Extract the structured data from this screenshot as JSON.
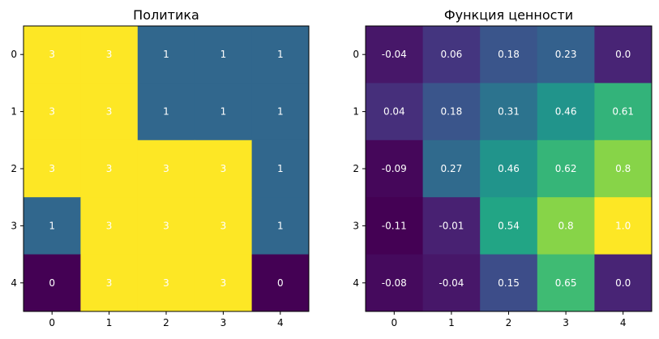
{
  "chart_data": [
    {
      "type": "heatmap",
      "title": "Политика",
      "colormap": "viridis",
      "vmin": 0,
      "vmax": 3,
      "x_ticks": [
        "0",
        "1",
        "2",
        "3",
        "4"
      ],
      "y_ticks": [
        "0",
        "1",
        "2",
        "3",
        "4"
      ],
      "values": [
        [
          3,
          3,
          1,
          1,
          1
        ],
        [
          3,
          3,
          1,
          1,
          1
        ],
        [
          3,
          3,
          3,
          3,
          1
        ],
        [
          1,
          3,
          3,
          3,
          1
        ],
        [
          0,
          3,
          3,
          3,
          0
        ]
      ],
      "labels": [
        [
          "3",
          "3",
          "1",
          "1",
          "1"
        ],
        [
          "3",
          "3",
          "1",
          "1",
          "1"
        ],
        [
          "3",
          "3",
          "3",
          "3",
          "1"
        ],
        [
          "1",
          "3",
          "3",
          "3",
          "1"
        ],
        [
          "0",
          "3",
          "3",
          "3",
          "0"
        ]
      ]
    },
    {
      "type": "heatmap",
      "title": "Функция ценности",
      "colormap": "viridis",
      "vmin": -0.11,
      "vmax": 1.0,
      "x_ticks": [
        "0",
        "1",
        "2",
        "3",
        "4"
      ],
      "y_ticks": [
        "0",
        "1",
        "2",
        "3",
        "4"
      ],
      "values": [
        [
          -0.04,
          0.06,
          0.18,
          0.23,
          0.0
        ],
        [
          0.04,
          0.18,
          0.31,
          0.46,
          0.61
        ],
        [
          -0.09,
          0.27,
          0.46,
          0.62,
          0.8
        ],
        [
          -0.11,
          -0.01,
          0.54,
          0.8,
          1.0
        ],
        [
          -0.08,
          -0.04,
          0.15,
          0.65,
          0.0
        ]
      ],
      "labels": [
        [
          "-0.04",
          "0.06",
          "0.18",
          "0.23",
          "0.0"
        ],
        [
          "0.04",
          "0.18",
          "0.31",
          "0.46",
          "0.61"
        ],
        [
          "-0.09",
          "0.27",
          "0.46",
          "0.62",
          "0.8"
        ],
        [
          "-0.11",
          "-0.01",
          "0.54",
          "0.8",
          "1.0"
        ],
        [
          "-0.08",
          "-0.04",
          "0.15",
          "0.65",
          "0.0"
        ]
      ]
    }
  ]
}
